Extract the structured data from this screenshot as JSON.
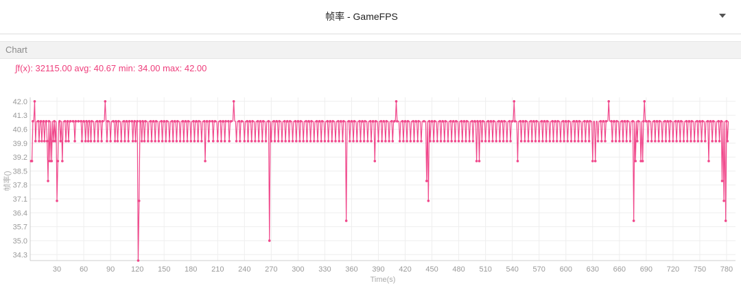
{
  "header": {
    "title": "帧率 - GameFPS"
  },
  "section": {
    "label": "Chart"
  },
  "stats": {
    "text": "∫f(x): 32115.00 avg: 40.67 min: 34.00 max: 42.00"
  },
  "colors": {
    "series": "#f0468a",
    "grid": "#eeeeee",
    "axis": "#cccccc"
  },
  "chart_data": {
    "type": "line",
    "xlabel": "Time(s)",
    "ylabel": "帧率()",
    "xlim": [
      0,
      790
    ],
    "ylim": [
      34,
      42
    ],
    "x_ticks": [
      30,
      60,
      90,
      120,
      150,
      180,
      210,
      240,
      270,
      300,
      330,
      360,
      390,
      420,
      450,
      480,
      510,
      540,
      570,
      600,
      630,
      660,
      690,
      720,
      750,
      780
    ],
    "y_ticks": [
      34.3,
      35.0,
      35.7,
      36.4,
      37.1,
      37.8,
      38.5,
      39.2,
      39.9,
      40.6,
      41.3,
      42.0
    ],
    "series": [
      {
        "x_start": 1,
        "x_step": 1,
        "baseline": 41,
        "deviations": [
          [
            1,
            39
          ],
          [
            2,
            39
          ],
          [
            5,
            42
          ],
          [
            6,
            40
          ],
          [
            8,
            41
          ],
          [
            10,
            40
          ],
          [
            13,
            40
          ],
          [
            16,
            40
          ],
          [
            19,
            40
          ],
          [
            20,
            38
          ],
          [
            22,
            39
          ],
          [
            24,
            39
          ],
          [
            26,
            40
          ],
          [
            28,
            40
          ],
          [
            30,
            37
          ],
          [
            31,
            39
          ],
          [
            34,
            40
          ],
          [
            36,
            39
          ],
          [
            40,
            40
          ],
          [
            43,
            40
          ],
          [
            50,
            40
          ],
          [
            55,
            41
          ],
          [
            58,
            40
          ],
          [
            62,
            40
          ],
          [
            65,
            40
          ],
          [
            68,
            40
          ],
          [
            72,
            40
          ],
          [
            76,
            40
          ],
          [
            80,
            40
          ],
          [
            84,
            42
          ],
          [
            86,
            40
          ],
          [
            90,
            40
          ],
          [
            95,
            40
          ],
          [
            98,
            40
          ],
          [
            102,
            40
          ],
          [
            106,
            40
          ],
          [
            110,
            40
          ],
          [
            115,
            40
          ],
          [
            118,
            40
          ],
          [
            121,
            34
          ],
          [
            122,
            37
          ],
          [
            125,
            40
          ],
          [
            128,
            40
          ],
          [
            132,
            40
          ],
          [
            136,
            40
          ],
          [
            140,
            40
          ],
          [
            144,
            40
          ],
          [
            148,
            40
          ],
          [
            152,
            40
          ],
          [
            156,
            40
          ],
          [
            160,
            40
          ],
          [
            164,
            40
          ],
          [
            168,
            40
          ],
          [
            172,
            40
          ],
          [
            176,
            40
          ],
          [
            180,
            40
          ],
          [
            184,
            40
          ],
          [
            188,
            40
          ],
          [
            192,
            40
          ],
          [
            196,
            39
          ],
          [
            200,
            40
          ],
          [
            205,
            40
          ],
          [
            210,
            40
          ],
          [
            214,
            40
          ],
          [
            218,
            40
          ],
          [
            223,
            40
          ],
          [
            228,
            42
          ],
          [
            231,
            40
          ],
          [
            235,
            40
          ],
          [
            240,
            40
          ],
          [
            244,
            40
          ],
          [
            248,
            40
          ],
          [
            252,
            40
          ],
          [
            256,
            40
          ],
          [
            260,
            40
          ],
          [
            264,
            40
          ],
          [
            268,
            35
          ],
          [
            270,
            40
          ],
          [
            274,
            40
          ],
          [
            278,
            40
          ],
          [
            282,
            40
          ],
          [
            286,
            40
          ],
          [
            290,
            40
          ],
          [
            294,
            40
          ],
          [
            298,
            40
          ],
          [
            302,
            40
          ],
          [
            306,
            40
          ],
          [
            310,
            40
          ],
          [
            314,
            40
          ],
          [
            318,
            40
          ],
          [
            322,
            40
          ],
          [
            326,
            40
          ],
          [
            330,
            40
          ],
          [
            334,
            40
          ],
          [
            338,
            40
          ],
          [
            342,
            40
          ],
          [
            346,
            40
          ],
          [
            350,
            40
          ],
          [
            354,
            36
          ],
          [
            358,
            40
          ],
          [
            362,
            40
          ],
          [
            366,
            40
          ],
          [
            370,
            40
          ],
          [
            374,
            40
          ],
          [
            378,
            40
          ],
          [
            382,
            40
          ],
          [
            386,
            39
          ],
          [
            390,
            40
          ],
          [
            394,
            40
          ],
          [
            398,
            40
          ],
          [
            402,
            40
          ],
          [
            406,
            40
          ],
          [
            410,
            42
          ],
          [
            414,
            40
          ],
          [
            418,
            40
          ],
          [
            422,
            40
          ],
          [
            426,
            40
          ],
          [
            430,
            40
          ],
          [
            434,
            40
          ],
          [
            438,
            40
          ],
          [
            444,
            38
          ],
          [
            446,
            37
          ],
          [
            448,
            40
          ],
          [
            452,
            40
          ],
          [
            456,
            40
          ],
          [
            460,
            40
          ],
          [
            464,
            40
          ],
          [
            468,
            40
          ],
          [
            472,
            40
          ],
          [
            476,
            40
          ],
          [
            480,
            40
          ],
          [
            484,
            40
          ],
          [
            488,
            40
          ],
          [
            492,
            40
          ],
          [
            496,
            40
          ],
          [
            500,
            39
          ],
          [
            503,
            39
          ],
          [
            506,
            40
          ],
          [
            510,
            40
          ],
          [
            514,
            40
          ],
          [
            518,
            40
          ],
          [
            522,
            40
          ],
          [
            526,
            40
          ],
          [
            530,
            40
          ],
          [
            534,
            40
          ],
          [
            538,
            40
          ],
          [
            542,
            42
          ],
          [
            546,
            39
          ],
          [
            550,
            40
          ],
          [
            554,
            40
          ],
          [
            558,
            40
          ],
          [
            562,
            40
          ],
          [
            566,
            40
          ],
          [
            570,
            40
          ],
          [
            574,
            40
          ],
          [
            578,
            40
          ],
          [
            582,
            40
          ],
          [
            586,
            40
          ],
          [
            590,
            40
          ],
          [
            594,
            40
          ],
          [
            598,
            40
          ],
          [
            602,
            40
          ],
          [
            606,
            40
          ],
          [
            610,
            40
          ],
          [
            614,
            40
          ],
          [
            618,
            40
          ],
          [
            622,
            40
          ],
          [
            626,
            40
          ],
          [
            630,
            39
          ],
          [
            633,
            39
          ],
          [
            636,
            40
          ],
          [
            640,
            40
          ],
          [
            644,
            40
          ],
          [
            648,
            42
          ],
          [
            652,
            40
          ],
          [
            656,
            40
          ],
          [
            660,
            40
          ],
          [
            664,
            40
          ],
          [
            668,
            40
          ],
          [
            672,
            40
          ],
          [
            676,
            36
          ],
          [
            678,
            39
          ],
          [
            680,
            40
          ],
          [
            684,
            39
          ],
          [
            686,
            39
          ],
          [
            688,
            42
          ],
          [
            692,
            40
          ],
          [
            696,
            40
          ],
          [
            700,
            40
          ],
          [
            704,
            40
          ],
          [
            708,
            40
          ],
          [
            712,
            40
          ],
          [
            716,
            40
          ],
          [
            720,
            40
          ],
          [
            724,
            40
          ],
          [
            728,
            40
          ],
          [
            732,
            40
          ],
          [
            736,
            40
          ],
          [
            740,
            40
          ],
          [
            744,
            40
          ],
          [
            748,
            40
          ],
          [
            752,
            40
          ],
          [
            756,
            40
          ],
          [
            760,
            39
          ],
          [
            764,
            40
          ],
          [
            768,
            40
          ],
          [
            772,
            40
          ],
          [
            775,
            38
          ],
          [
            777,
            37
          ],
          [
            779,
            36
          ],
          [
            781,
            40
          ]
        ],
        "x_end": 782
      }
    ]
  }
}
